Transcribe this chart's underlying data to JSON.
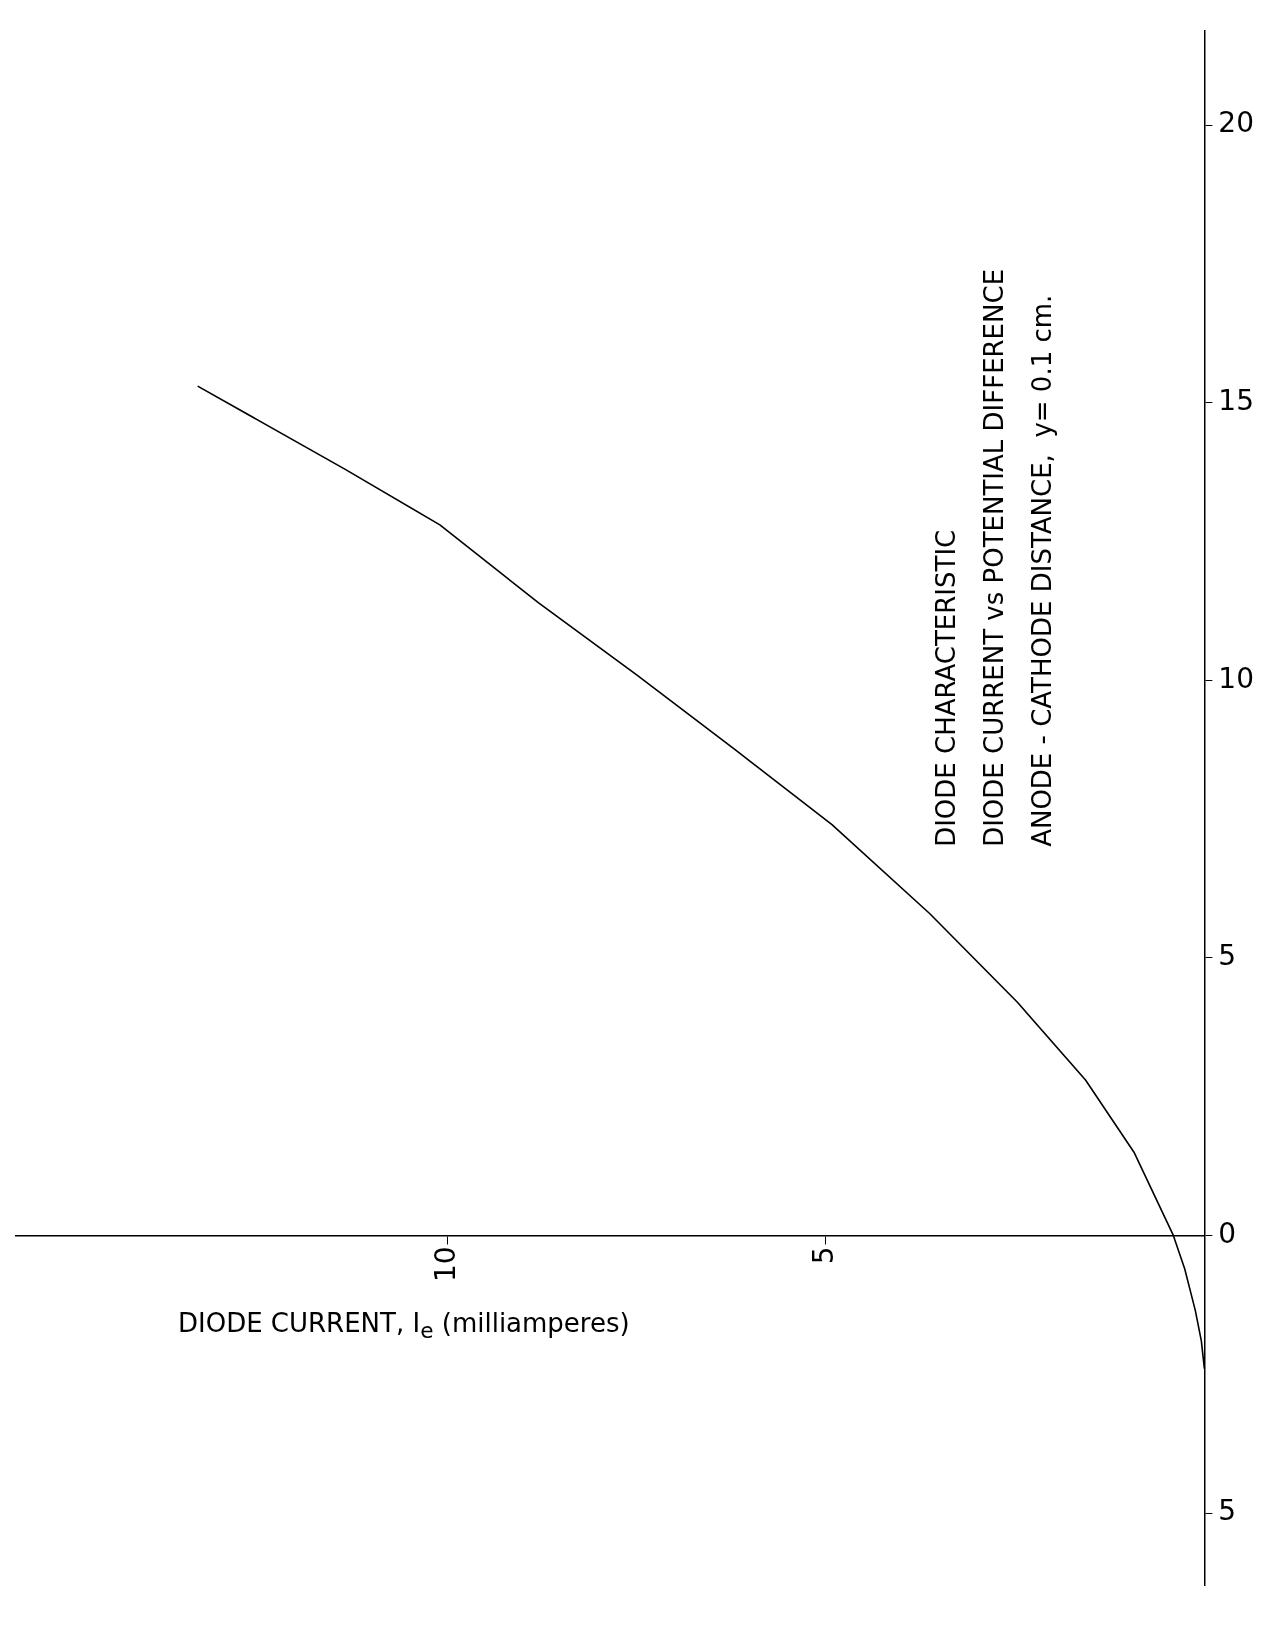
{
  "chart_data": {
    "type": "line",
    "title": "DIODE CHARACTERISTIC",
    "subtitle": "DIODE CURRENT vs POTENTIAL DIFFERENCE",
    "annotations": [
      "ANODE - CATHODE DISTANCE,  y= 0.1 cm."
    ],
    "xlabel": "DIODE CURRENT, I$_{e}$ (milliamperes)",
    "x": [
      0,
      0.04,
      0.12,
      0.26,
      0.41,
      0.93,
      1.57,
      2.47,
      3.63,
      4.92,
      6.2,
      7.5,
      8.8,
      10.1,
      11.35,
      13.3
    ],
    "series": [
      {
        "color": "#000000",
        "values": [
          -2.4,
          -1.9,
          -1.35,
          -0.6,
          0,
          1.5,
          2.8,
          4.2,
          5.8,
          7.4,
          8.75,
          10.1,
          11.4,
          12.8,
          13.8,
          15.3
        ]
      }
    ],
    "xlim": [
      15.7,
      0
    ],
    "xticks": [
      10,
      5
    ],
    "ylim": [
      -6.3,
      21.7
    ],
    "yticks": [
      {
        "value": -5,
        "label": "5"
      },
      0,
      5,
      10,
      15,
      20
    ],
    "grid": false,
    "legend": false,
    "marker": "none",
    "line_style": "solid"
  }
}
